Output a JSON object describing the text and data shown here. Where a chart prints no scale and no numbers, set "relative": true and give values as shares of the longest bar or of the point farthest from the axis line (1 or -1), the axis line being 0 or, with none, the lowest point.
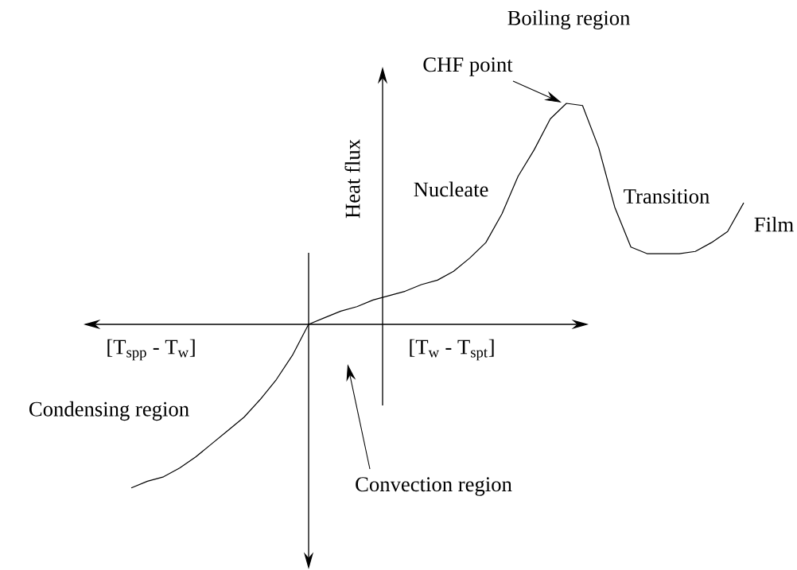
{
  "chart_data": {
    "type": "line",
    "relative": true,
    "color": "#000000",
    "ylabel": "Heat flux",
    "annotations": [
      "Boiling region",
      "CHF point",
      "Nucleate",
      "Transition",
      "Film",
      "[T$_{spp}$ - T$_{w}$]",
      "[T$_{w}$ - T$_{spt}$]",
      "Condensing region",
      "Convection region"
    ],
    "categories": [
      null,
      null,
      null,
      null,
      null,
      null,
      null,
      null,
      null,
      null,
      null,
      null,
      null,
      null,
      null,
      null,
      null,
      null,
      null,
      null,
      null,
      null,
      null,
      null,
      null,
      null,
      null,
      null,
      null,
      null,
      null,
      null,
      null,
      null,
      null,
      null,
      null,
      null,
      null
    ],
    "values": [
      -0.74,
      -0.71,
      -0.69,
      -0.65,
      -0.6,
      -0.54,
      -0.48,
      -0.42,
      -0.34,
      -0.25,
      -0.14,
      0,
      0.03,
      0.06,
      0.08,
      0.11,
      0.13,
      0.15,
      0.18,
      0.2,
      0.24,
      0.3,
      0.37,
      0.5,
      0.67,
      0.79,
      0.93,
      1.0,
      0.99,
      0.8,
      0.53,
      0.35,
      0.32,
      0.32,
      0.32,
      0.33,
      0.37,
      0.42,
      0.55
    ]
  }
}
